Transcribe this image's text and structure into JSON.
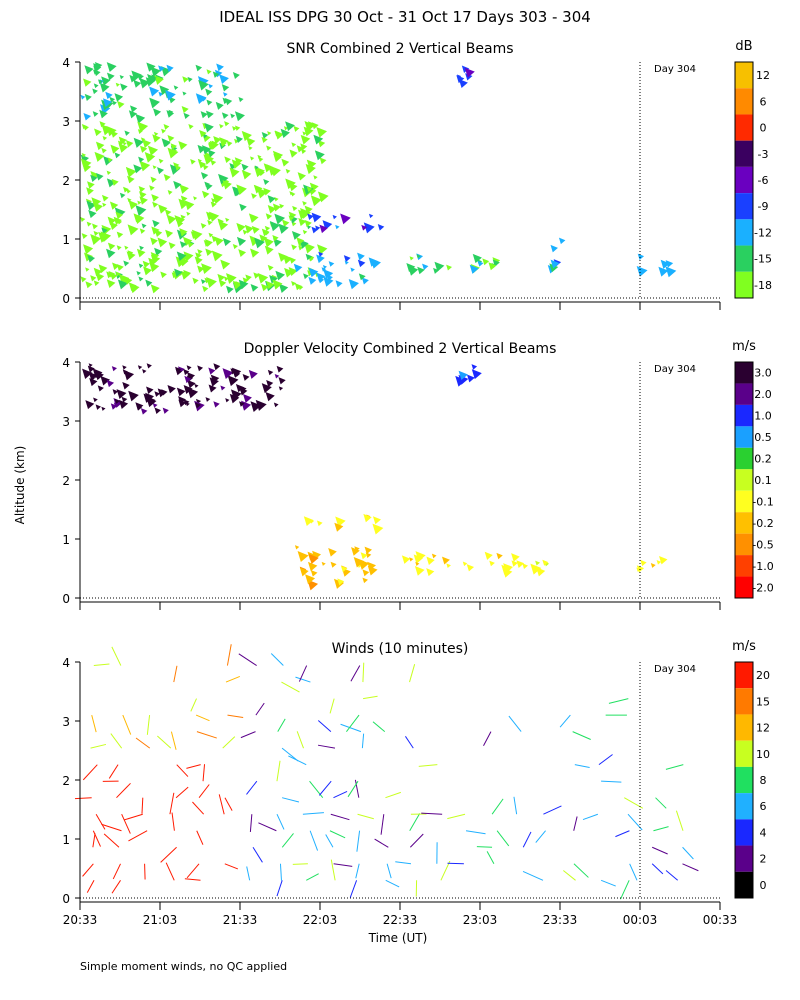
{
  "title": "IDEAL ISS DPG  30 Oct - 31 Oct 17 Days 303 - 304",
  "y_axis_label": "Altitude (km)",
  "x_axis_label": "Time (UT)",
  "footnote": "Simple moment winds, no QC applied",
  "day_marker_label": "Day 304",
  "time_ticks": [
    "20:33",
    "21:03",
    "21:33",
    "22:03",
    "22:33",
    "23:03",
    "23:33",
    "00:03",
    "00:33"
  ],
  "altitude_ticks": [
    "0",
    "1",
    "2",
    "3",
    "4"
  ],
  "chart_data": [
    {
      "type": "heatmap",
      "title": "SNR Combined 2 Vertical Beams",
      "x_range_minutes_after_2033": [
        0,
        240
      ],
      "ylim_km": [
        0,
        4
      ],
      "day_marker_minutes": 210,
      "colorbar": {
        "unit": "dB",
        "labels": [
          "12",
          "6",
          "0",
          "-3",
          "-6",
          "-9",
          "-12",
          "-15",
          "-18"
        ],
        "colors": [
          "#f7c000",
          "#ff8a00",
          "#ff2a00",
          "#3a0060",
          "#6a00c0",
          "#1a40ff",
          "#1ab0ff",
          "#2ad060",
          "#80ff20"
        ]
      },
      "regions": [
        {
          "t0": 0,
          "t1": 60,
          "y0": 3.1,
          "y1": 4.0,
          "level": 7
        },
        {
          "t0": 0,
          "t1": 90,
          "y0": 0.2,
          "y1": 3.0,
          "level": 8
        },
        {
          "t0": 82,
          "t1": 112,
          "y0": 1.2,
          "y1": 1.45,
          "level": 5
        },
        {
          "t0": 80,
          "t1": 110,
          "y0": 0.3,
          "y1": 0.8,
          "level": 6
        },
        {
          "t0": 120,
          "t1": 160,
          "y0": 0.5,
          "y1": 0.8,
          "level": 7
        },
        {
          "t0": 140,
          "t1": 145,
          "y0": 3.7,
          "y1": 4.0,
          "level": 5
        },
        {
          "t0": 175,
          "t1": 180,
          "y0": 0.5,
          "y1": 1.1,
          "level": 6
        },
        {
          "t0": 208,
          "t1": 220,
          "y0": 0.5,
          "y1": 0.8,
          "level": 6
        }
      ]
    },
    {
      "type": "heatmap",
      "title": "Doppler Velocity Combined 2 Vertical Beams",
      "x_range_minutes_after_2033": [
        0,
        240
      ],
      "ylim_km": [
        0,
        4
      ],
      "day_marker_minutes": 210,
      "colorbar": {
        "unit": "m/s",
        "labels": [
          "3.0",
          "2.0",
          "1.0",
          "0.5",
          "0.2",
          "0.1",
          "-0.1",
          "-0.2",
          "-0.5",
          "-1.0",
          "-2.0"
        ],
        "colors": [
          "#2a0030",
          "#5a008a",
          "#1a28ff",
          "#1aa0ff",
          "#2ad030",
          "#c8ff20",
          "#ffff20",
          "#ffc000",
          "#ff9000",
          "#ff4000",
          "#ff0000"
        ]
      },
      "regions": [
        {
          "t0": 0,
          "t1": 75,
          "y0": 3.2,
          "y1": 4.0,
          "level": 0
        },
        {
          "t0": 140,
          "t1": 148,
          "y0": 3.7,
          "y1": 4.0,
          "level": 2
        },
        {
          "t0": 82,
          "t1": 110,
          "y0": 1.25,
          "y1": 1.45,
          "level": 6
        },
        {
          "t0": 80,
          "t1": 110,
          "y0": 0.3,
          "y1": 0.9,
          "level": 7
        },
        {
          "t0": 120,
          "t1": 175,
          "y0": 0.5,
          "y1": 0.8,
          "level": 6
        },
        {
          "t0": 208,
          "t1": 222,
          "y0": 0.5,
          "y1": 0.75,
          "level": 6
        }
      ]
    },
    {
      "type": "scatter",
      "title": "Winds (10 minutes)",
      "x_range_minutes_after_2033": [
        0,
        240
      ],
      "ylim_km": [
        0,
        4
      ],
      "day_marker_minutes": 210,
      "colorbar": {
        "unit": "m/s",
        "labels": [
          "20",
          "15",
          "12",
          "10",
          "8",
          "6",
          "4",
          "2",
          "0"
        ],
        "colors": [
          "#ff1a00",
          "#ff7a00",
          "#ffb800",
          "#c8ff20",
          "#20e060",
          "#20b0ff",
          "#1a28ff",
          "#5a008a",
          "#000000"
        ]
      },
      "wind_profiles_minutes": [
        5,
        15,
        25,
        35,
        45,
        55,
        65,
        75,
        85,
        95,
        105,
        115,
        125,
        135,
        145,
        155,
        165,
        175,
        185,
        195,
        205,
        215,
        225
      ]
    }
  ]
}
